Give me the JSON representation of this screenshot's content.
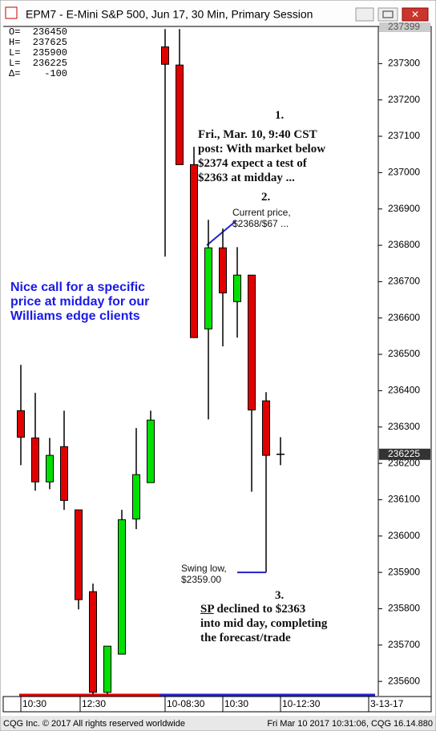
{
  "window_title": "EPM7 - E-Mini S&P 500, Jun 17, 30 Min, Primary Session",
  "info": [
    {
      "label": "O=",
      "value": "236450"
    },
    {
      "label": "H=",
      "value": "237625"
    },
    {
      "label": "L=",
      "value": "235900"
    },
    {
      "label": "L=",
      "value": "236225"
    },
    {
      "label": "Δ=",
      "value": "-100"
    }
  ],
  "chart_data": {
    "type": "candlestick",
    "series": {
      "open": [
        236345,
        236270,
        236149,
        236246,
        236072,
        235847,
        235570,
        235675,
        236047,
        236147,
        237346,
        237296,
        237022,
        236570,
        236793,
        236645,
        236718,
        236372,
        236222
      ],
      "high": [
        236471,
        236394,
        236270,
        236345,
        236072,
        235869,
        235697,
        236072,
        236297,
        236345,
        237395,
        237395,
        237071,
        236870,
        236846,
        236795,
        236718,
        236396,
        236272
      ],
      "low": [
        236195,
        236125,
        236129,
        236072,
        235798,
        235565,
        235565,
        235675,
        236019,
        236147,
        236769,
        237022,
        236546,
        236321,
        236522,
        236546,
        236122,
        235900,
        236195
      ],
      "close": [
        236272,
        236149,
        236222,
        236098,
        235825,
        235570,
        235697,
        236045,
        236169,
        236319,
        237298,
        237022,
        236546,
        236793,
        236669,
        236718,
        236347,
        236222,
        236225
      ],
      "up_color": "#00e000",
      "down_color": "#e00000"
    },
    "ylim": [
      235565,
      237400
    ],
    "yticks": [
      235600,
      235700,
      235800,
      235900,
      236000,
      236100,
      236200,
      236300,
      236400,
      236500,
      236600,
      236700,
      236800,
      236900,
      237000,
      237100,
      237200,
      237300
    ],
    "top_label": 237399,
    "last_price": 236225,
    "x_labels": [
      "10:30",
      "12:30",
      "10-08:30",
      "10:30",
      "10-12:30",
      "3-13-17"
    ],
    "annotations": {
      "left": [
        "Nice call for a specific",
        "price at midday for our",
        "Williams edge clients"
      ],
      "n1": "1.",
      "post": [
        "Fri., Mar. 10, 9:40 CST",
        "post: With market below",
        "$2374 expect a test of",
        "$2363 at midday ..."
      ],
      "n2": "2.",
      "current": [
        "Current price,",
        "$2368/$67 ..."
      ],
      "swing": [
        "Swing low,",
        "$2359.00"
      ],
      "n3": "3.",
      "sp": "SP",
      "declined": [
        " declined to $2363",
        "into mid day, completing",
        "the forecast/trade"
      ]
    }
  },
  "footer": {
    "left": "CQG Inc. © 2017 All rights reserved worldwide",
    "right": "Fri Mar 10 2017 10:31:06, CQG 16.14.880"
  }
}
